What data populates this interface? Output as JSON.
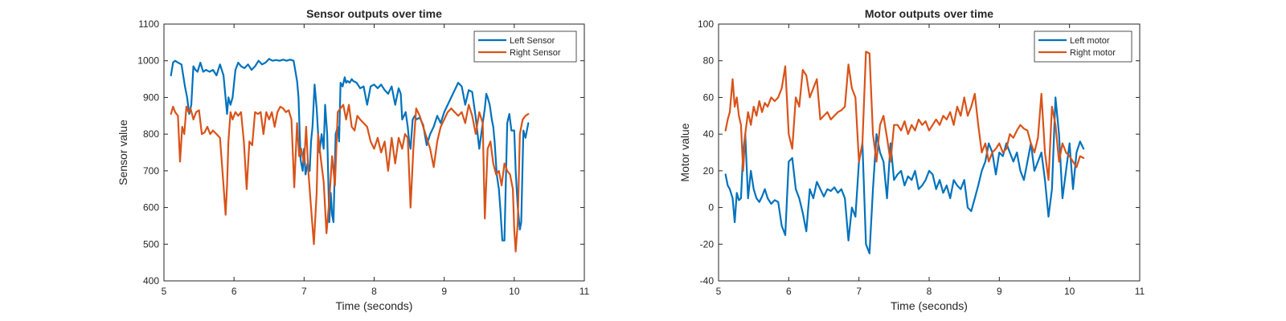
{
  "chart_data": [
    {
      "type": "line",
      "title": "Sensor outputs over time",
      "xlabel": "Time (seconds)",
      "ylabel": "Sensor value",
      "xlim": [
        5,
        11
      ],
      "ylim": [
        400,
        1100
      ],
      "xticks": [
        5,
        6,
        7,
        8,
        9,
        10,
        11
      ],
      "yticks": [
        400,
        500,
        600,
        700,
        800,
        900,
        1000,
        1100
      ],
      "grid": false,
      "legend_position": "top-right",
      "series": [
        {
          "name": "Left Sensor",
          "color": "#0072BD",
          "x": [
            5.1,
            5.13,
            5.16,
            5.2,
            5.25,
            5.3,
            5.33,
            5.36,
            5.39,
            5.42,
            5.45,
            5.48,
            5.52,
            5.56,
            5.6,
            5.65,
            5.7,
            5.75,
            5.8,
            5.85,
            5.9,
            5.92,
            5.95,
            5.98,
            6.02,
            6.06,
            6.1,
            6.15,
            6.2,
            6.25,
            6.3,
            6.35,
            6.4,
            6.45,
            6.5,
            6.55,
            6.6,
            6.65,
            6.7,
            6.75,
            6.8,
            6.85,
            6.9,
            6.92,
            6.95,
            6.98,
            7.0,
            7.02,
            7.05,
            7.08,
            7.1,
            7.12,
            7.15,
            7.18,
            7.2,
            7.22,
            7.25,
            7.28,
            7.3,
            7.33,
            7.36,
            7.38,
            7.4,
            7.42,
            7.45,
            7.48,
            7.5,
            7.52,
            7.55,
            7.58,
            7.6,
            7.62,
            7.65,
            7.68,
            7.7,
            7.75,
            7.8,
            7.85,
            7.9,
            7.95,
            8.0,
            8.05,
            8.1,
            8.15,
            8.2,
            8.25,
            8.3,
            8.35,
            8.38,
            8.4,
            8.45,
            8.48,
            8.5,
            8.52,
            8.55,
            8.58,
            8.6,
            8.65,
            8.7,
            8.75,
            8.8,
            8.85,
            8.9,
            8.95,
            9.0,
            9.05,
            9.1,
            9.15,
            9.2,
            9.25,
            9.3,
            9.35,
            9.4,
            9.45,
            9.5,
            9.55,
            9.58,
            9.6,
            9.62,
            9.65,
            9.68,
            9.7,
            9.72,
            9.75,
            9.78,
            9.8,
            9.83,
            9.86,
            9.9,
            9.93,
            9.96,
            10.0,
            10.02,
            10.05,
            10.08,
            10.1,
            10.13,
            10.16,
            10.2
          ],
          "y": [
            960,
            995,
            1000,
            995,
            990,
            930,
            900,
            855,
            880,
            985,
            975,
            970,
            995,
            970,
            975,
            970,
            975,
            960,
            990,
            960,
            855,
            900,
            880,
            900,
            975,
            995,
            985,
            980,
            990,
            975,
            985,
            1000,
            990,
            995,
            1005,
            1000,
            1002,
            1000,
            1003,
            1000,
            1003,
            1000,
            945,
            900,
            730,
            700,
            760,
            690,
            720,
            700,
            780,
            820,
            935,
            870,
            800,
            750,
            800,
            760,
            880,
            800,
            560,
            640,
            580,
            560,
            800,
            820,
            780,
            940,
            930,
            955,
            940,
            945,
            940,
            950,
            945,
            940,
            925,
            930,
            880,
            930,
            935,
            925,
            935,
            920,
            910,
            930,
            880,
            925,
            910,
            840,
            860,
            820,
            780,
            760,
            840,
            850,
            840,
            845,
            825,
            770,
            800,
            820,
            850,
            830,
            860,
            880,
            900,
            920,
            940,
            930,
            880,
            920,
            915,
            845,
            760,
            830,
            870,
            910,
            900,
            880,
            840,
            820,
            780,
            690,
            650,
            600,
            510,
            510,
            830,
            855,
            810,
            810,
            700,
            600,
            540,
            560,
            810,
            790,
            830
          ]
        },
        {
          "name": "Right Sensor",
          "color": "#D95319",
          "x": [
            5.1,
            5.13,
            5.16,
            5.2,
            5.23,
            5.26,
            5.29,
            5.32,
            5.35,
            5.38,
            5.42,
            5.46,
            5.5,
            5.54,
            5.58,
            5.62,
            5.66,
            5.7,
            5.75,
            5.8,
            5.85,
            5.88,
            5.9,
            5.92,
            5.95,
            5.98,
            6.02,
            6.06,
            6.1,
            6.14,
            6.18,
            6.22,
            6.26,
            6.3,
            6.34,
            6.38,
            6.42,
            6.46,
            6.5,
            6.54,
            6.58,
            6.62,
            6.66,
            6.7,
            6.74,
            6.78,
            6.82,
            6.86,
            6.9,
            6.93,
            6.96,
            7.0,
            7.03,
            7.06,
            7.1,
            7.14,
            7.18,
            7.2,
            7.24,
            7.28,
            7.32,
            7.36,
            7.4,
            7.44,
            7.48,
            7.52,
            7.56,
            7.6,
            7.64,
            7.68,
            7.72,
            7.76,
            7.8,
            7.85,
            7.9,
            7.95,
            8.0,
            8.05,
            8.1,
            8.15,
            8.2,
            8.25,
            8.3,
            8.35,
            8.4,
            8.44,
            8.48,
            8.52,
            8.56,
            8.6,
            8.65,
            8.7,
            8.75,
            8.8,
            8.85,
            8.9,
            8.95,
            9.0,
            9.05,
            9.1,
            9.15,
            9.2,
            9.25,
            9.3,
            9.35,
            9.4,
            9.45,
            9.5,
            9.55,
            9.58,
            9.62,
            9.66,
            9.7,
            9.74,
            9.78,
            9.82,
            9.86,
            9.9,
            9.94,
            9.98,
            10.0,
            10.02,
            10.05,
            10.08,
            10.1,
            10.12,
            10.16,
            10.2
          ],
          "y": [
            855,
            875,
            860,
            850,
            725,
            820,
            800,
            875,
            860,
            870,
            840,
            860,
            865,
            800,
            805,
            820,
            800,
            810,
            800,
            790,
            660,
            580,
            660,
            780,
            860,
            840,
            860,
            850,
            860,
            780,
            650,
            780,
            770,
            860,
            855,
            860,
            800,
            860,
            840,
            860,
            820,
            860,
            875,
            870,
            860,
            865,
            840,
            655,
            830,
            740,
            760,
            720,
            820,
            700,
            600,
            500,
            640,
            800,
            730,
            670,
            530,
            620,
            740,
            660,
            860,
            870,
            880,
            840,
            880,
            820,
            810,
            850,
            840,
            830,
            820,
            780,
            760,
            790,
            750,
            780,
            700,
            790,
            720,
            790,
            760,
            800,
            790,
            600,
            760,
            870,
            850,
            820,
            790,
            760,
            710,
            780,
            820,
            840,
            860,
            870,
            860,
            850,
            860,
            830,
            880,
            850,
            800,
            860,
            830,
            570,
            760,
            780,
            720,
            690,
            700,
            660,
            720,
            700,
            690,
            650,
            540,
            480,
            560,
            800,
            820,
            840,
            850,
            855
          ]
        }
      ]
    },
    {
      "type": "line",
      "title": "Motor outputs over time",
      "xlabel": "Time (seconds)",
      "ylabel": "Motor value",
      "xlim": [
        5,
        11
      ],
      "ylim": [
        -40,
        100
      ],
      "xticks": [
        5,
        6,
        7,
        8,
        9,
        10,
        11
      ],
      "yticks": [
        -40,
        -20,
        0,
        20,
        40,
        60,
        80,
        100
      ],
      "grid": false,
      "legend_position": "top-right",
      "series": [
        {
          "name": "Left motor",
          "color": "#0072BD",
          "x": [
            5.1,
            5.13,
            5.16,
            5.2,
            5.23,
            5.26,
            5.29,
            5.32,
            5.35,
            5.38,
            5.42,
            5.46,
            5.5,
            5.54,
            5.58,
            5.62,
            5.66,
            5.7,
            5.75,
            5.8,
            5.85,
            5.9,
            5.95,
            6.0,
            6.05,
            6.1,
            6.15,
            6.2,
            6.25,
            6.3,
            6.35,
            6.4,
            6.45,
            6.5,
            6.55,
            6.6,
            6.65,
            6.7,
            6.75,
            6.8,
            6.85,
            6.9,
            6.95,
            7.0,
            7.05,
            7.1,
            7.15,
            7.2,
            7.25,
            7.3,
            7.35,
            7.4,
            7.45,
            7.5,
            7.55,
            7.6,
            7.65,
            7.7,
            7.75,
            7.8,
            7.85,
            7.9,
            7.95,
            8.0,
            8.05,
            8.1,
            8.15,
            8.2,
            8.25,
            8.3,
            8.35,
            8.4,
            8.45,
            8.5,
            8.55,
            8.6,
            8.65,
            8.7,
            8.75,
            8.8,
            8.85,
            8.9,
            8.95,
            9.0,
            9.05,
            9.1,
            9.15,
            9.2,
            9.25,
            9.3,
            9.35,
            9.4,
            9.45,
            9.5,
            9.55,
            9.6,
            9.65,
            9.7,
            9.75,
            9.8,
            9.85,
            9.9,
            9.95,
            10.0,
            10.05,
            10.1,
            10.15,
            10.2
          ],
          "y": [
            18,
            12,
            10,
            5,
            -8,
            8,
            4,
            5,
            30,
            40,
            5,
            20,
            10,
            5,
            3,
            6,
            10,
            5,
            2,
            4,
            3,
            -10,
            -15,
            25,
            27,
            10,
            5,
            -3,
            -13,
            10,
            5,
            14,
            10,
            6,
            10,
            9,
            11,
            8,
            10,
            5,
            -18,
            0,
            -5,
            25,
            35,
            -20,
            -25,
            10,
            40,
            30,
            25,
            5,
            35,
            15,
            18,
            20,
            12,
            17,
            15,
            20,
            10,
            12,
            15,
            20,
            18,
            10,
            15,
            8,
            12,
            5,
            15,
            12,
            10,
            15,
            0,
            -2,
            5,
            12,
            20,
            25,
            35,
            30,
            18,
            30,
            28,
            35,
            30,
            25,
            30,
            20,
            15,
            25,
            35,
            20,
            25,
            30,
            15,
            -5,
            10,
            60,
            40,
            5,
            20,
            35,
            10,
            30,
            36,
            32
          ]
        },
        {
          "name": "Right motor",
          "color": "#D95319",
          "x": [
            5.1,
            5.13,
            5.16,
            5.2,
            5.23,
            5.26,
            5.29,
            5.32,
            5.35,
            5.38,
            5.42,
            5.46,
            5.5,
            5.54,
            5.58,
            5.62,
            5.66,
            5.7,
            5.75,
            5.8,
            5.85,
            5.9,
            5.95,
            6.0,
            6.05,
            6.1,
            6.15,
            6.2,
            6.25,
            6.3,
            6.35,
            6.4,
            6.45,
            6.5,
            6.55,
            6.6,
            6.65,
            6.7,
            6.75,
            6.8,
            6.85,
            6.9,
            6.95,
            7.0,
            7.05,
            7.1,
            7.15,
            7.2,
            7.25,
            7.3,
            7.35,
            7.4,
            7.45,
            7.5,
            7.55,
            7.6,
            7.65,
            7.7,
            7.75,
            7.8,
            7.85,
            7.9,
            7.95,
            8.0,
            8.05,
            8.1,
            8.15,
            8.2,
            8.25,
            8.3,
            8.35,
            8.4,
            8.45,
            8.5,
            8.55,
            8.6,
            8.65,
            8.7,
            8.75,
            8.8,
            8.85,
            8.9,
            8.95,
            9.0,
            9.05,
            9.1,
            9.15,
            9.2,
            9.25,
            9.3,
            9.35,
            9.4,
            9.45,
            9.5,
            9.55,
            9.6,
            9.65,
            9.7,
            9.75,
            9.8,
            9.85,
            9.9,
            9.95,
            10.0,
            10.05,
            10.1,
            10.15,
            10.2
          ],
          "y": [
            42,
            48,
            52,
            70,
            55,
            60,
            50,
            45,
            20,
            40,
            52,
            45,
            55,
            50,
            58,
            52,
            57,
            55,
            60,
            58,
            60,
            65,
            77,
            40,
            32,
            60,
            55,
            75,
            72,
            60,
            65,
            70,
            48,
            50,
            52,
            48,
            50,
            52,
            53,
            55,
            78,
            65,
            60,
            25,
            35,
            85,
            84,
            40,
            25,
            45,
            50,
            38,
            25,
            45,
            45,
            42,
            47,
            40,
            45,
            42,
            48,
            45,
            47,
            42,
            45,
            48,
            45,
            50,
            48,
            52,
            45,
            55,
            50,
            60,
            50,
            55,
            62,
            45,
            30,
            35,
            25,
            30,
            32,
            35,
            30,
            32,
            40,
            38,
            42,
            45,
            43,
            42,
            35,
            30,
            38,
            62,
            30,
            15,
            55,
            45,
            25,
            35,
            30,
            28,
            25,
            22,
            28,
            27
          ]
        }
      ]
    }
  ]
}
